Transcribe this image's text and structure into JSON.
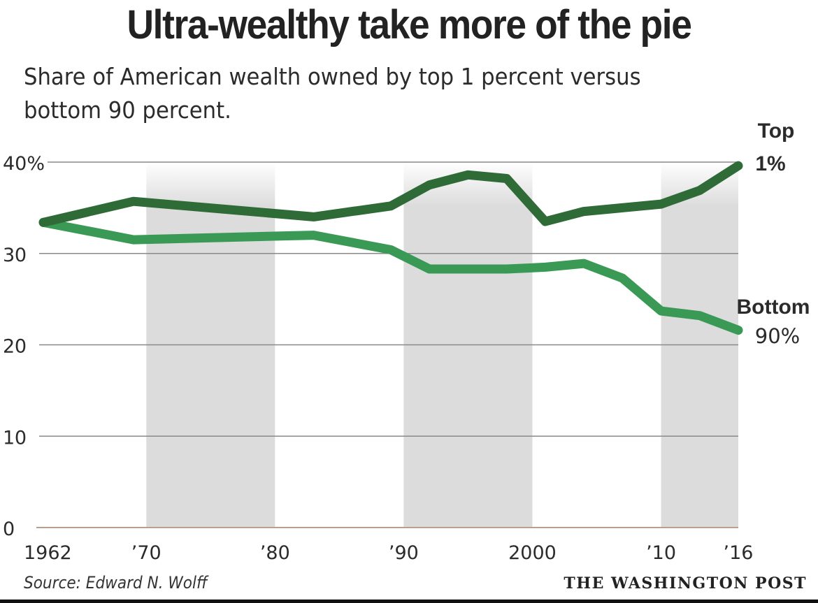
{
  "title": "Ultra-wealthy take more of the pie",
  "subtitle": "Share of American wealth owned by top 1 percent versus bottom 90 percent.",
  "source": "Source: Edward N. Wolff",
  "credit": "THE WASHINGTON POST",
  "chart_data": {
    "type": "line",
    "title": "Ultra-wealthy take more of the pie",
    "subtitle": "Share of American wealth owned by top 1 percent versus bottom 90 percent.",
    "xlabel": "",
    "ylabel": "",
    "xlim": [
      1962,
      2016
    ],
    "ylim": [
      0,
      40
    ],
    "grid": true,
    "y_ticks": [
      {
        "value": 0,
        "label": "0"
      },
      {
        "value": 10,
        "label": "10"
      },
      {
        "value": 20,
        "label": "20"
      },
      {
        "value": 30,
        "label": "30"
      },
      {
        "value": 40,
        "label": "40%"
      }
    ],
    "x_ticks": [
      {
        "value": 1962,
        "label": "1962"
      },
      {
        "value": 1970,
        "label": "’70"
      },
      {
        "value": 1980,
        "label": "’80"
      },
      {
        "value": 1990,
        "label": "’90"
      },
      {
        "value": 2000,
        "label": "2000"
      },
      {
        "value": 2010,
        "label": "’10"
      },
      {
        "value": 2016,
        "label": "’16"
      }
    ],
    "shaded_decades": [
      [
        1970,
        1980
      ],
      [
        1990,
        2000
      ],
      [
        2010,
        2016
      ]
    ],
    "legend_placement": "direct-labels-right",
    "series": [
      {
        "name": "Top 1%",
        "label_lines": [
          "Top",
          "1%"
        ],
        "color": "#2e6b37",
        "x": [
          1962,
          1969,
          1983,
          1989,
          1992,
          1995,
          1998,
          2001,
          2004,
          2007,
          2010,
          2013,
          2016
        ],
        "values": [
          33.4,
          35.7,
          34.0,
          35.2,
          37.5,
          38.6,
          38.2,
          33.5,
          34.6,
          35.0,
          35.4,
          36.9,
          39.6
        ]
      },
      {
        "name": "Bottom 90%",
        "label_lines": [
          "Bottom",
          "90%"
        ],
        "color": "#3a9a55",
        "x": [
          1962,
          1969,
          1983,
          1989,
          1992,
          1995,
          1998,
          2001,
          2004,
          2007,
          2010,
          2013,
          2016
        ],
        "values": [
          33.4,
          31.5,
          32.0,
          30.4,
          28.3,
          28.3,
          28.3,
          28.5,
          28.9,
          27.3,
          23.7,
          23.2,
          21.6
        ]
      }
    ]
  }
}
